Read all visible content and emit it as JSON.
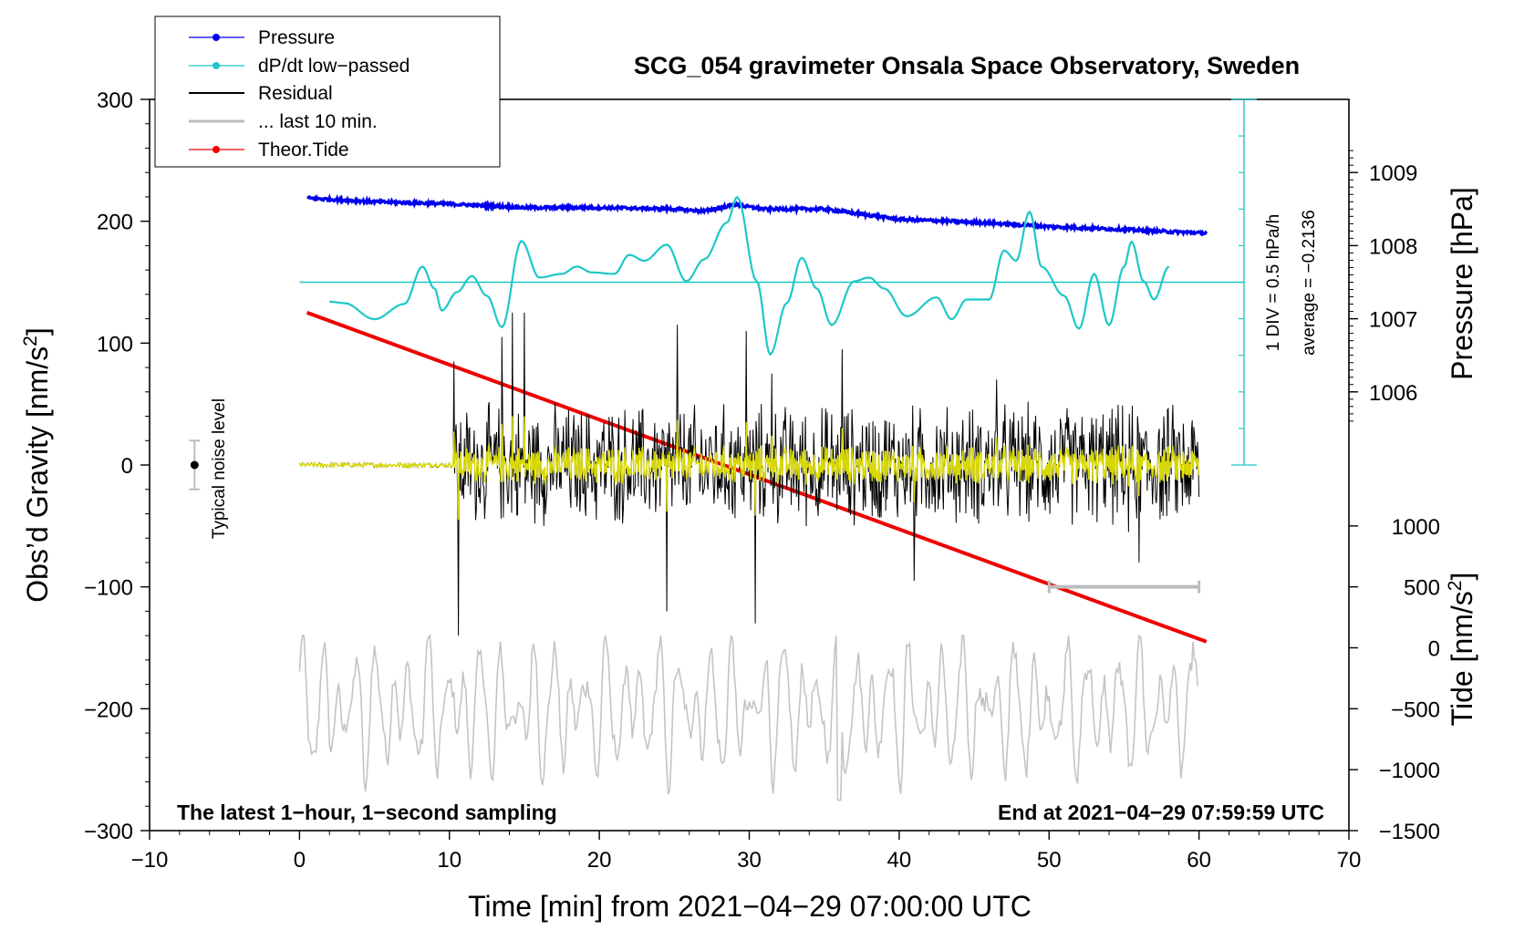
{
  "chart_data": {
    "type": "line",
    "title": "SCG_054 gravimeter Onsala Space Observatory, Sweden",
    "xlabel": "Time [min] from 2021−04−29 07:00:00 UTC",
    "ylabel_left": "Obs’d Gravity [nm/s",
    "ylabel_left_sup": "2",
    "ylabel_left_end": "]",
    "ylabel_right_pressure": "Pressure [hPa]",
    "ylabel_right_tide": "Tide [nm/s",
    "ylabel_right_tide_sup": "2",
    "ylabel_right_tide_end": "]",
    "xlim": [
      -10,
      70
    ],
    "ylim": [
      -300,
      300
    ],
    "x_ticks": [
      {
        "value": -10,
        "label": "−10"
      },
      {
        "value": 0,
        "label": "0"
      },
      {
        "value": 10,
        "label": "10"
      },
      {
        "value": 20,
        "label": "20"
      },
      {
        "value": 30,
        "label": "30"
      },
      {
        "value": 40,
        "label": "40"
      },
      {
        "value": 50,
        "label": "50"
      },
      {
        "value": 60,
        "label": "60"
      },
      {
        "value": 70,
        "label": "70"
      }
    ],
    "y_ticks": [
      {
        "value": 300,
        "label": "300"
      },
      {
        "value": 200,
        "label": "200"
      },
      {
        "value": 100,
        "label": "100"
      },
      {
        "value": 0,
        "label": "0"
      },
      {
        "value": -100,
        "label": "−100"
      },
      {
        "value": -200,
        "label": "−200"
      },
      {
        "value": -300,
        "label": "−300"
      }
    ],
    "pressure_axis": {
      "ticks": [
        {
          "value": 1006,
          "label": "1006"
        },
        {
          "value": 1007,
          "label": "1007"
        },
        {
          "value": 1008,
          "label": "1008"
        },
        {
          "value": 1009,
          "label": "1009"
        }
      ],
      "ref_hpa": 1008,
      "ref_gravity": 180,
      "gravity_per_hpa": 60
    },
    "tide_axis": {
      "ticks": [
        {
          "value": 1000,
          "label": "1000"
        },
        {
          "value": 500,
          "label": "500"
        },
        {
          "value": 0,
          "label": "0"
        },
        {
          "value": -500,
          "label": "−500"
        },
        {
          "value": -1000,
          "label": "−1000"
        },
        {
          "value": -1500,
          "label": "−1500"
        }
      ],
      "gravity_per_unit": 0.1,
      "gravity_offset": -150
    },
    "legend": {
      "position": "top-left",
      "entries": [
        {
          "label": "Pressure",
          "color": "#0000ee",
          "marker": true
        },
        {
          "label": "dP/dt low−passed",
          "color": "#1fc7c7",
          "marker": true
        },
        {
          "label": "Residual",
          "color": "#000000",
          "marker": false
        },
        {
          "label": "... last 10 min.",
          "color": "#bdbdbd",
          "marker": false
        },
        {
          "label": "Theor.Tide",
          "color": "#ee0000",
          "marker": true
        }
      ]
    },
    "series": [
      {
        "name": "Pressure",
        "unit": "hPa",
        "x_range": [
          0.5,
          60.5
        ],
        "points": [
          [
            0.5,
            1008.65
          ],
          [
            5,
            1008.6
          ],
          [
            10,
            1008.57
          ],
          [
            15,
            1008.52
          ],
          [
            20,
            1008.52
          ],
          [
            25,
            1008.5
          ],
          [
            27,
            1008.47
          ],
          [
            29,
            1008.56
          ],
          [
            31,
            1008.5
          ],
          [
            35,
            1008.5
          ],
          [
            40,
            1008.36
          ],
          [
            45,
            1008.32
          ],
          [
            50,
            1008.26
          ],
          [
            55,
            1008.22
          ],
          [
            57,
            1008.2
          ],
          [
            60.5,
            1008.17
          ]
        ]
      },
      {
        "name": "dP/dt low-passed",
        "unit": "hPa/h",
        "average": -0.2136,
        "points": [
          [
            2,
            -0.48
          ],
          [
            3,
            -0.5
          ],
          [
            5,
            -0.72
          ],
          [
            7,
            -0.51
          ],
          [
            8.2,
            0.0
          ],
          [
            9,
            -0.3
          ],
          [
            9.5,
            -0.6
          ],
          [
            10.5,
            -0.35
          ],
          [
            11.5,
            -0.13
          ],
          [
            12.5,
            -0.4
          ],
          [
            13.5,
            -0.83
          ],
          [
            14.8,
            0.35
          ],
          [
            16,
            -0.15
          ],
          [
            17.5,
            -0.1
          ],
          [
            18.5,
            0.0
          ],
          [
            19.5,
            -0.08
          ],
          [
            21,
            -0.1
          ],
          [
            22,
            0.16
          ],
          [
            23,
            0.08
          ],
          [
            24.5,
            0.3
          ],
          [
            25.8,
            -0.2
          ],
          [
            27,
            0.1
          ],
          [
            28.5,
            0.6
          ],
          [
            29.2,
            0.95
          ],
          [
            30.5,
            -0.2
          ],
          [
            31.4,
            -1.2
          ],
          [
            32.5,
            -0.5
          ],
          [
            33.5,
            0.12
          ],
          [
            34.5,
            -0.3
          ],
          [
            35.5,
            -0.8
          ],
          [
            37,
            -0.2
          ],
          [
            38,
            -0.15
          ],
          [
            39,
            -0.3
          ],
          [
            40.5,
            -0.68
          ],
          [
            42.5,
            -0.42
          ],
          [
            43.5,
            -0.72
          ],
          [
            44.5,
            -0.45
          ],
          [
            46,
            -0.45
          ],
          [
            47,
            0.22
          ],
          [
            47.8,
            0.08
          ],
          [
            48.7,
            0.75
          ],
          [
            49.5,
            0.0
          ],
          [
            51,
            -0.4
          ],
          [
            52,
            -0.85
          ],
          [
            53,
            -0.1
          ],
          [
            54,
            -0.8
          ],
          [
            55,
            0.0
          ],
          [
            55.5,
            0.34
          ],
          [
            56.3,
            -0.2
          ],
          [
            57,
            -0.45
          ],
          [
            58,
            0.0
          ]
        ]
      },
      {
        "name": "Residual",
        "unit": "nm/s2",
        "x_range": [
          0,
          60
        ],
        "quiet_until": 10.3,
        "quiet_amplitude": 2,
        "active_amplitude": 40,
        "peak_max": 125,
        "peak_min": -140
      },
      {
        "name": "... last 10 min.",
        "unit": "nm/s2",
        "x_range": [
          0,
          60
        ],
        "display_offset": -200,
        "amplitude_min": -70,
        "amplitude_max": 60,
        "scale_bar_x": [
          50,
          60
        ],
        "scale_bar_y": -100
      },
      {
        "name": "Theor.Tide",
        "unit": "nm/s2",
        "points": [
          [
            0.5,
            125
          ],
          [
            60.5,
            -145
          ]
        ]
      }
    ],
    "dpdt_scale": {
      "label": "1 DIV = 0.5 hPa/h",
      "average_label": "average = −0.2136",
      "ref_value": -0.2136,
      "gravity_per_div": 30,
      "divisions": 10,
      "axis_x": 63,
      "ref_line_x": [
        0,
        63
      ]
    },
    "noise": {
      "label": "Typical noise level",
      "x": -7,
      "center": 0,
      "half_range": 20
    },
    "footer_left": "The latest 1−hour, 1−second sampling",
    "footer_right": "End at 2021−04−29 07:59:59 UTC"
  }
}
